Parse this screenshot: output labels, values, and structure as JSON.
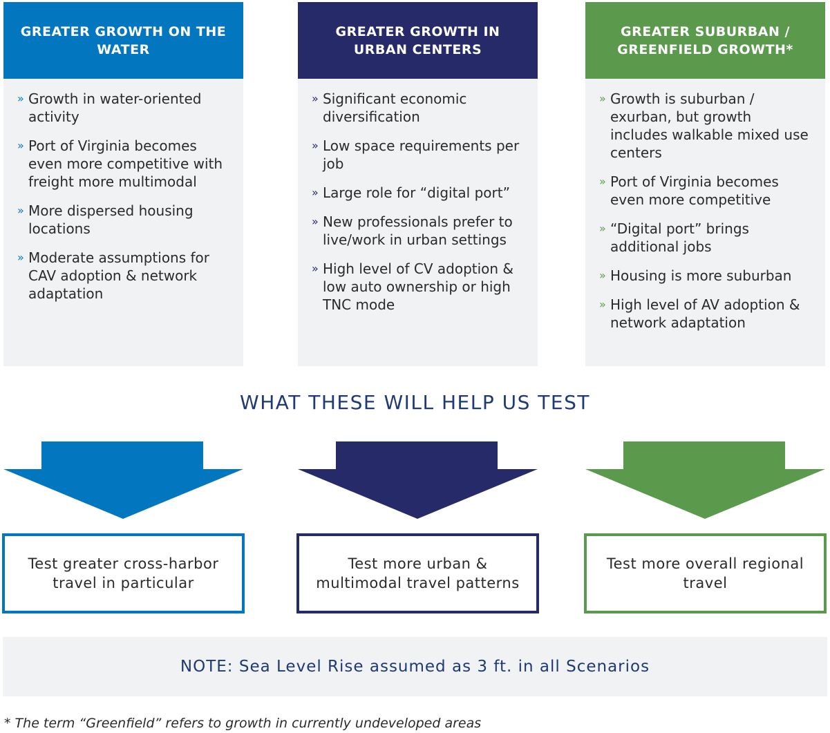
{
  "colors": {
    "blue": "#0277bf",
    "navy": "#262a68",
    "green": "#5b9a4c",
    "panel": "#f1f2f4",
    "title": "#1f3a72"
  },
  "bullet_icon": "double-chevron-right",
  "scenarios": [
    {
      "title": "GREATER GROWTH ON THE WATER",
      "items": [
        "Growth in water-oriented activity",
        "Port of Virginia becomes even more competitive with freight more multimodal",
        "More dispersed housing locations",
        "Moderate assumptions for CAV adoption & network adaptation"
      ],
      "test": "Test greater cross-harbor travel in particular"
    },
    {
      "title": "GREATER GROWTH IN URBAN CENTERS",
      "items": [
        "Significant economic diversification",
        "Low space requirements per job",
        "Large role for “digital port”",
        "New professionals prefer to live/work in urban settings",
        "High level of CV adoption & low auto ownership or high TNC mode"
      ],
      "test": "Test more urban & multimodal travel patterns"
    },
    {
      "title": "GREATER SUBURBAN / GREENFIELD GROWTH*",
      "items": [
        "Growth is suburban / exurban, but growth includes walkable mixed use centers",
        "Port of Virginia becomes even more competitive",
        "“Digital port” brings additional jobs",
        "Housing is more suburban",
        "High level of AV adoption & network adaptation"
      ],
      "test": "Test more overall regional travel"
    }
  ],
  "section_title": "WHAT THESE WILL HELP US TEST",
  "note": "NOTE: Sea Level Rise assumed as 3 ft. in all Scenarios",
  "footnote": "* The term “Greenfield” refers to growth in currently undeveloped areas",
  "bullet": "»"
}
